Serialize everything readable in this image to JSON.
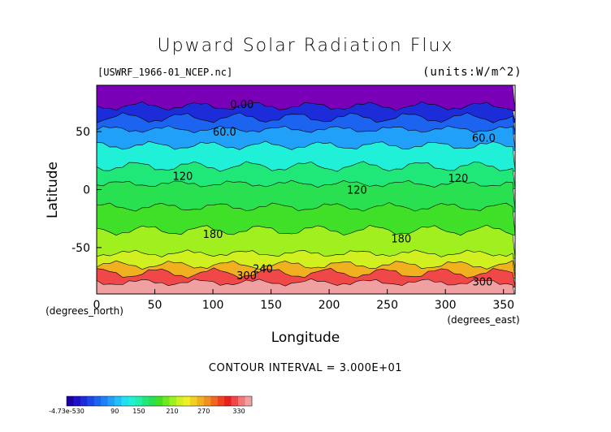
{
  "chart_data": {
    "type": "heatmap",
    "title": "Upward Solar Radiation Flux",
    "source_file": "[USWRF_1966-01_NCEP.nc]",
    "units_label": "(units:W/m^2)",
    "xlabel": "Longitude",
    "ylabel": "Latitude",
    "x_unit_label": "(degrees_east)",
    "y_unit_label": "(degrees_north)",
    "xlim": [
      0,
      360
    ],
    "ylim": [
      -90,
      90
    ],
    "x_ticks": [
      0,
      50,
      100,
      150,
      200,
      250,
      300,
      350
    ],
    "y_ticks": [
      50,
      0,
      -50
    ],
    "contour_interval_text": "CONTOUR INTERVAL = 3.000E+01",
    "contour_labels": [
      {
        "text": "0.00",
        "x": 125,
        "y": 74
      },
      {
        "text": "60.0",
        "x": 110,
        "y": 50
      },
      {
        "text": "60.0",
        "x": 333,
        "y": 45
      },
      {
        "text": "120",
        "x": 74,
        "y": 12
      },
      {
        "text": "120",
        "x": 224,
        "y": 0
      },
      {
        "text": "120",
        "x": 311,
        "y": 10
      },
      {
        "text": "180",
        "x": 100,
        "y": -38
      },
      {
        "text": "180",
        "x": 262,
        "y": -42
      },
      {
        "text": "240",
        "x": 143,
        "y": -68
      },
      {
        "text": "300",
        "x": 129,
        "y": -74
      },
      {
        "text": "300",
        "x": 332,
        "y": -79
      }
    ],
    "zonal_bands": [
      {
        "lat_from": 90,
        "lat_to": 72,
        "value": 0
      },
      {
        "lat_from": 72,
        "lat_to": 62,
        "value": 25
      },
      {
        "lat_from": 62,
        "lat_to": 52,
        "value": 55
      },
      {
        "lat_from": 52,
        "lat_to": 38,
        "value": 80
      },
      {
        "lat_from": 38,
        "lat_to": 20,
        "value": 110
      },
      {
        "lat_from": 20,
        "lat_to": 5,
        "value": 140
      },
      {
        "lat_from": 5,
        "lat_to": -15,
        "value": 150
      },
      {
        "lat_from": -15,
        "lat_to": -35,
        "value": 165
      },
      {
        "lat_from": -35,
        "lat_to": -55,
        "value": 185
      },
      {
        "lat_from": -55,
        "lat_to": -65,
        "value": 205
      },
      {
        "lat_from": -65,
        "lat_to": -72,
        "value": 240
      },
      {
        "lat_from": -72,
        "lat_to": -80,
        "value": 300
      },
      {
        "lat_from": -80,
        "lat_to": -90,
        "value": 330
      }
    ],
    "colorbar": {
      "labels": [
        "-4.73e-530",
        "90",
        "150",
        "210",
        "270",
        "330"
      ],
      "colors": [
        "#1a00a0",
        "#1c10c8",
        "#1c2cd8",
        "#1c48e8",
        "#1c64f0",
        "#2080f8",
        "#20a0f8",
        "#20c0f8",
        "#20e0f8",
        "#20f0d8",
        "#20f0a8",
        "#20e878",
        "#28e050",
        "#40e028",
        "#70e820",
        "#a0f020",
        "#d0f020",
        "#f0f020",
        "#f0d020",
        "#f0b020",
        "#f09020",
        "#f06820",
        "#f04020",
        "#e82020",
        "#f04848",
        "#f07878",
        "#f0a0a0"
      ]
    },
    "grid": false
  }
}
